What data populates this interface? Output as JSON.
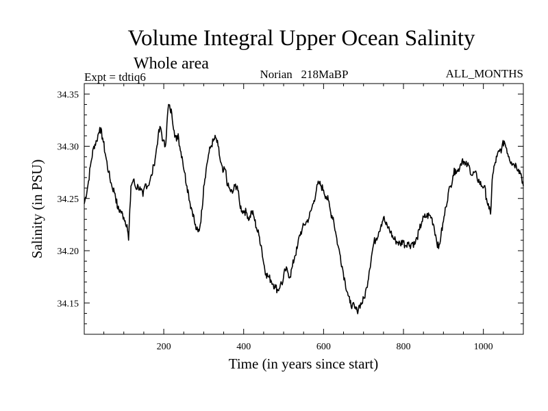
{
  "chart_data": {
    "type": "line",
    "title": "Volume Integral Upper Ocean Salinity",
    "subtitle": "Whole area",
    "expt_label": "Expt = tdtiq6",
    "center_label": "Norian   218MaBP",
    "right_label": "ALL_MONTHS",
    "xlabel": "Time (in years since start)",
    "ylabel": "Salinity (in PSU)",
    "xlim": [
      1,
      1100
    ],
    "ylim": [
      34.12,
      34.36
    ],
    "xticks": [
      {
        "value": 200,
        "label": "200"
      },
      {
        "value": 400,
        "label": "400"
      },
      {
        "value": 600,
        "label": "600"
      },
      {
        "value": 800,
        "label": "800"
      },
      {
        "value": 1000,
        "label": "1000"
      }
    ],
    "yticks": [
      {
        "value": 34.15,
        "label": "34.15"
      },
      {
        "value": 34.2,
        "label": "34.20"
      },
      {
        "value": 34.25,
        "label": "34.25"
      },
      {
        "value": 34.3,
        "label": "34.30"
      },
      {
        "value": 34.35,
        "label": "34.35"
      }
    ],
    "grid": false,
    "series": [
      {
        "name": "Salinity",
        "color": "#000000",
        "points": [
          [
            1,
            34.245
          ],
          [
            10,
            34.262
          ],
          [
            18,
            34.285
          ],
          [
            25,
            34.3
          ],
          [
            32,
            34.305
          ],
          [
            40,
            34.318
          ],
          [
            47,
            34.308
          ],
          [
            55,
            34.29
          ],
          [
            62,
            34.275
          ],
          [
            70,
            34.262
          ],
          [
            78,
            34.255
          ],
          [
            85,
            34.24
          ],
          [
            92,
            34.238
          ],
          [
            100,
            34.232
          ],
          [
            108,
            34.225
          ],
          [
            112,
            34.21
          ],
          [
            118,
            34.262
          ],
          [
            124,
            34.268
          ],
          [
            130,
            34.26
          ],
          [
            136,
            34.262
          ],
          [
            142,
            34.258
          ],
          [
            148,
            34.252
          ],
          [
            154,
            34.264
          ],
          [
            160,
            34.262
          ],
          [
            166,
            34.268
          ],
          [
            170,
            34.272
          ],
          [
            175,
            34.282
          ],
          [
            180,
            34.292
          ],
          [
            186,
            34.31
          ],
          [
            192,
            34.318
          ],
          [
            198,
            34.305
          ],
          [
            204,
            34.3
          ],
          [
            208,
            34.322
          ],
          [
            212,
            34.34
          ],
          [
            216,
            34.335
          ],
          [
            220,
            34.332
          ],
          [
            226,
            34.315
          ],
          [
            232,
            34.305
          ],
          [
            236,
            34.312
          ],
          [
            240,
            34.3
          ],
          [
            246,
            34.29
          ],
          [
            252,
            34.275
          ],
          [
            258,
            34.262
          ],
          [
            262,
            34.255
          ],
          [
            266,
            34.245
          ],
          [
            270,
            34.24
          ],
          [
            274,
            34.235
          ],
          [
            278,
            34.225
          ],
          [
            282,
            34.22
          ],
          [
            286,
            34.218
          ],
          [
            290,
            34.222
          ],
          [
            296,
            34.24
          ],
          [
            300,
            34.262
          ],
          [
            306,
            34.278
          ],
          [
            312,
            34.292
          ],
          [
            318,
            34.3
          ],
          [
            324,
            34.305
          ],
          [
            330,
            34.308
          ],
          [
            336,
            34.3
          ],
          [
            342,
            34.285
          ],
          [
            348,
            34.275
          ],
          [
            354,
            34.278
          ],
          [
            360,
            34.262
          ],
          [
            366,
            34.258
          ],
          [
            372,
            34.255
          ],
          [
            378,
            34.262
          ],
          [
            384,
            34.262
          ],
          [
            390,
            34.245
          ],
          [
            396,
            34.238
          ],
          [
            402,
            34.238
          ],
          [
            408,
            34.236
          ],
          [
            414,
            34.23
          ],
          [
            420,
            34.238
          ],
          [
            426,
            34.232
          ],
          [
            432,
            34.222
          ],
          [
            438,
            34.215
          ],
          [
            444,
            34.205
          ],
          [
            450,
            34.188
          ],
          [
            456,
            34.178
          ],
          [
            462,
            34.175
          ],
          [
            468,
            34.172
          ],
          [
            474,
            34.168
          ],
          [
            480,
            34.165
          ],
          [
            486,
            34.162
          ],
          [
            492,
            34.168
          ],
          [
            498,
            34.17
          ],
          [
            504,
            34.182
          ],
          [
            510,
            34.18
          ],
          [
            516,
            34.175
          ],
          [
            522,
            34.185
          ],
          [
            528,
            34.195
          ],
          [
            534,
            34.202
          ],
          [
            540,
            34.215
          ],
          [
            546,
            34.22
          ],
          [
            552,
            34.225
          ],
          [
            558,
            34.228
          ],
          [
            564,
            34.232
          ],
          [
            570,
            34.24
          ],
          [
            576,
            34.248
          ],
          [
            582,
            34.258
          ],
          [
            588,
            34.265
          ],
          [
            594,
            34.262
          ],
          [
            600,
            34.258
          ],
          [
            606,
            34.252
          ],
          [
            612,
            34.248
          ],
          [
            618,
            34.236
          ],
          [
            624,
            34.232
          ],
          [
            630,
            34.218
          ],
          [
            636,
            34.205
          ],
          [
            642,
            34.195
          ],
          [
            648,
            34.182
          ],
          [
            654,
            34.17
          ],
          [
            660,
            34.16
          ],
          [
            666,
            34.15
          ],
          [
            672,
            34.148
          ],
          [
            678,
            34.145
          ],
          [
            684,
            34.142
          ],
          [
            690,
            34.148
          ],
          [
            696,
            34.15
          ],
          [
            702,
            34.155
          ],
          [
            708,
            34.165
          ],
          [
            714,
            34.18
          ],
          [
            720,
            34.195
          ],
          [
            726,
            34.208
          ],
          [
            732,
            34.212
          ],
          [
            738,
            34.218
          ],
          [
            744,
            34.225
          ],
          [
            750,
            34.232
          ],
          [
            756,
            34.225
          ],
          [
            762,
            34.222
          ],
          [
            768,
            34.218
          ],
          [
            774,
            34.212
          ],
          [
            780,
            34.21
          ],
          [
            786,
            34.208
          ],
          [
            792,
            34.206
          ],
          [
            798,
            34.21
          ],
          [
            804,
            34.205
          ],
          [
            810,
            34.208
          ],
          [
            816,
            34.205
          ],
          [
            822,
            34.208
          ],
          [
            828,
            34.206
          ],
          [
            834,
            34.212
          ],
          [
            840,
            34.22
          ],
          [
            846,
            34.228
          ],
          [
            852,
            34.232
          ],
          [
            858,
            34.233
          ],
          [
            864,
            34.234
          ],
          [
            870,
            34.232
          ],
          [
            876,
            34.224
          ],
          [
            882,
            34.212
          ],
          [
            888,
            34.202
          ],
          [
            894,
            34.215
          ],
          [
            900,
            34.228
          ],
          [
            906,
            34.242
          ],
          [
            912,
            34.255
          ],
          [
            918,
            34.262
          ],
          [
            924,
            34.272
          ],
          [
            930,
            34.278
          ],
          [
            936,
            34.276
          ],
          [
            942,
            34.282
          ],
          [
            948,
            34.288
          ],
          [
            954,
            34.282
          ],
          [
            960,
            34.282
          ],
          [
            966,
            34.279
          ],
          [
            972,
            34.272
          ],
          [
            978,
            34.275
          ],
          [
            984,
            34.27
          ],
          [
            990,
            34.266
          ],
          [
            996,
            34.262
          ],
          [
            1002,
            34.262
          ],
          [
            1008,
            34.25
          ],
          [
            1014,
            34.24
          ],
          [
            1018,
            34.235
          ],
          [
            1022,
            34.268
          ],
          [
            1028,
            34.282
          ],
          [
            1034,
            34.29
          ],
          [
            1040,
            34.295
          ],
          [
            1046,
            34.298
          ],
          [
            1052,
            34.305
          ],
          [
            1058,
            34.298
          ],
          [
            1064,
            34.29
          ],
          [
            1070,
            34.285
          ],
          [
            1076,
            34.283
          ],
          [
            1082,
            34.282
          ],
          [
            1088,
            34.278
          ],
          [
            1094,
            34.274
          ],
          [
            1100,
            34.262
          ]
        ]
      }
    ]
  }
}
